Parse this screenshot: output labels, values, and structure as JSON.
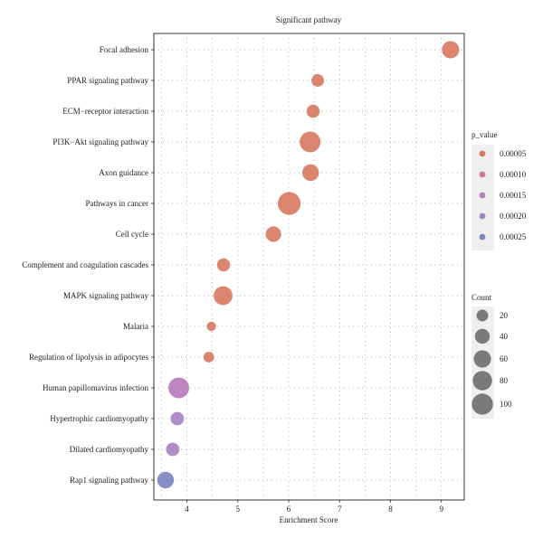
{
  "chart_data": {
    "type": "scatter",
    "title": "Significant pathway",
    "xlabel": "Enrichment Score",
    "ylabel": "",
    "xlim": [
      3.35,
      9.45
    ],
    "xticks": [
      "4",
      "5",
      "6",
      "7",
      "8",
      "9"
    ],
    "grid": "dotted",
    "legend_position": "right",
    "pathways": [
      {
        "name": "Focal adhesion",
        "enrichment": 9.18,
        "p_value": 1e-05,
        "count": 60,
        "color": "#D87A62"
      },
      {
        "name": "PPAR signaling pathway",
        "enrichment": 6.57,
        "p_value": 2e-05,
        "count": 25,
        "color": "#D87A62"
      },
      {
        "name": "ECM−receptor interaction",
        "enrichment": 6.48,
        "p_value": 2e-05,
        "count": 28,
        "color": "#D87A62"
      },
      {
        "name": "PI3K−Akt signaling pathway",
        "enrichment": 6.42,
        "p_value": 1e-05,
        "count": 95,
        "color": "#D87A62"
      },
      {
        "name": "Axon guidance",
        "enrichment": 6.43,
        "p_value": 2e-05,
        "count": 55,
        "color": "#D87A62"
      },
      {
        "name": "Pathways in cancer",
        "enrichment": 6.01,
        "p_value": 1e-05,
        "count": 120,
        "color": "#D87A62"
      },
      {
        "name": "Cell cycle",
        "enrichment": 5.7,
        "p_value": 2e-05,
        "count": 45,
        "color": "#D87A62"
      },
      {
        "name": "Complement and coagulation cascades",
        "enrichment": 4.72,
        "p_value": 3e-05,
        "count": 28,
        "color": "#D87A62"
      },
      {
        "name": "MAPK signaling pathway",
        "enrichment": 4.71,
        "p_value": 2e-05,
        "count": 75,
        "color": "#D87A62"
      },
      {
        "name": "Malaria",
        "enrichment": 4.48,
        "p_value": 3e-05,
        "count": 10,
        "color": "#D87A62"
      },
      {
        "name": "Regulation of lipolysis in adipocytes",
        "enrichment": 4.43,
        "p_value": 3e-05,
        "count": 15,
        "color": "#D87A62"
      },
      {
        "name": "Human papillomavirus infection",
        "enrichment": 3.84,
        "p_value": 0.00016,
        "count": 95,
        "color": "#B67DB8"
      },
      {
        "name": "Hypertrophic cardiomyopathy",
        "enrichment": 3.81,
        "p_value": 0.00018,
        "count": 30,
        "color": "#A883C2"
      },
      {
        "name": "Dilated cardiomyopathy",
        "enrichment": 3.72,
        "p_value": 0.00019,
        "count": 30,
        "color": "#A883C2"
      },
      {
        "name": "Rap1 signaling pathway",
        "enrichment": 3.58,
        "p_value": 0.00026,
        "count": 55,
        "color": "#7C85C6"
      }
    ],
    "color_legend": {
      "title": "p_value",
      "entries": [
        {
          "label": "0.00005",
          "color": "#D87A62"
        },
        {
          "label": "0.00010",
          "color": "#C97C89"
        },
        {
          "label": "0.00015",
          "color": "#B67DB8"
        },
        {
          "label": "0.00020",
          "color": "#9F84C2"
        },
        {
          "label": "0.00025",
          "color": "#7C85C6"
        }
      ]
    },
    "size_legend": {
      "title": "Count",
      "color": "#7a7a7a",
      "entries": [
        {
          "label": "20",
          "count": 20
        },
        {
          "label": "40",
          "count": 40
        },
        {
          "label": "60",
          "count": 60
        },
        {
          "label": "80",
          "count": 80
        },
        {
          "label": "100",
          "count": 100
        }
      ]
    }
  }
}
